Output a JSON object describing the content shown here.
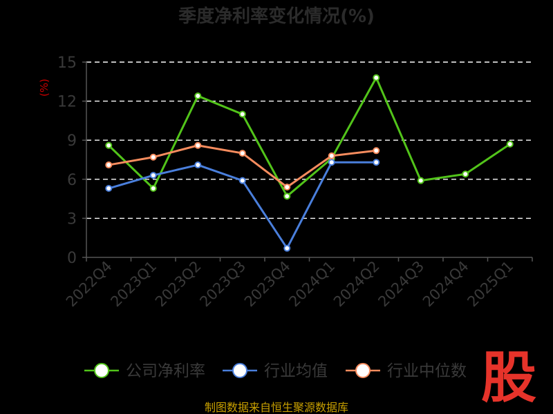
{
  "title": "季度净利率变化情况(%)",
  "footer": "制图数据来自恒生聚源数据库",
  "brand_char": "股",
  "colors": {
    "background": "#000000",
    "company": "#52c41a",
    "industry_avg": "#4a7fdc",
    "industry_median": "#f78c5e",
    "grid": "#ffffff",
    "axis": "#555555",
    "brand": "#e6332a",
    "footer": "#c8a000",
    "ylabel": "#cc0000"
  },
  "chart_data": {
    "type": "line",
    "title": "季度净利率变化情况(%)",
    "xlabel": "",
    "ylabel": "(%)",
    "ylim": [
      0,
      15
    ],
    "yticks": [
      0,
      3,
      6,
      9,
      12,
      15
    ],
    "grid": true,
    "legend_position": "bottom",
    "categories": [
      "2022Q4",
      "2023Q1",
      "2023Q2",
      "2023Q3",
      "2023Q4",
      "2024Q1",
      "2024Q2",
      "2024Q3",
      "2024Q4",
      "2025Q1"
    ],
    "series": [
      {
        "name": "公司净利率",
        "color": "#52c41a",
        "values": [
          8.6,
          5.3,
          12.4,
          11.0,
          4.7,
          7.6,
          13.8,
          5.9,
          6.4,
          8.7
        ]
      },
      {
        "name": "行业均值",
        "color": "#4a7fdc",
        "values": [
          5.3,
          6.3,
          7.1,
          5.9,
          0.7,
          7.3,
          7.3,
          null,
          null,
          null
        ]
      },
      {
        "name": "行业中位数",
        "color": "#f78c5e",
        "values": [
          7.1,
          7.7,
          8.6,
          8.0,
          5.4,
          7.8,
          8.2,
          null,
          null,
          null
        ]
      }
    ]
  }
}
